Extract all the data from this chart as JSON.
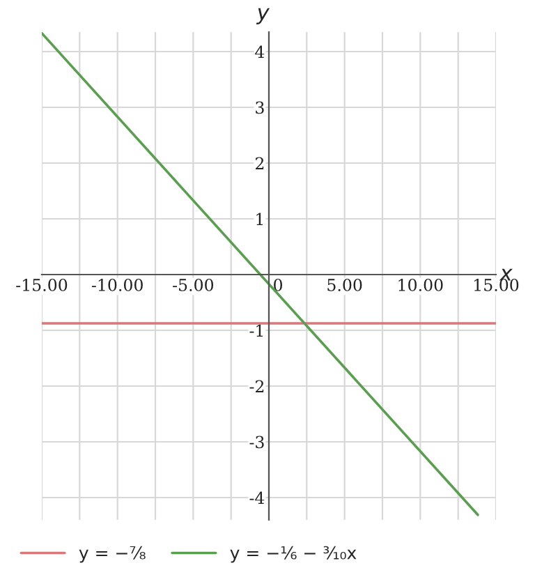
{
  "chart_data": {
    "type": "line",
    "xlabel": "x",
    "ylabel": "y",
    "xlim": [
      -15,
      15
    ],
    "ylim": [
      -4.4,
      4.35
    ],
    "xticks": [
      {
        "value": -15,
        "label": "-15.00"
      },
      {
        "value": -12.5,
        "label": null
      },
      {
        "value": -10,
        "label": "-10.00"
      },
      {
        "value": -7.5,
        "label": null
      },
      {
        "value": -5,
        "label": "-5.00"
      },
      {
        "value": -2.5,
        "label": null
      },
      0,
      {
        "value": 2.5,
        "label": null
      },
      {
        "value": 5,
        "label": "5.00"
      },
      {
        "value": 7.5,
        "label": null
      },
      {
        "value": 10,
        "label": "10.00"
      },
      {
        "value": 12.5,
        "label": null
      },
      {
        "value": 15,
        "label": "15.00"
      }
    ],
    "yticks": [
      {
        "value": -4,
        "label": "-4"
      },
      {
        "value": -3,
        "label": "-3"
      },
      {
        "value": -2,
        "label": "-2"
      },
      {
        "value": -1,
        "label": "-1"
      },
      {
        "value": 0,
        "label": null
      },
      1,
      2,
      3,
      4
    ],
    "grid": true,
    "legend": "bottom",
    "marker": "none",
    "line_style": "solid",
    "series": [
      {
        "name": "y = −⅞",
        "color": "#d9777a",
        "x": [
          -15,
          15
        ],
        "values": [
          -0.875,
          -0.875
        ]
      },
      {
        "name": "y = −⅙ − ³⁄₁₀x",
        "color": "#5a9e4f",
        "x": [
          -15,
          13.8
        ],
        "values": [
          4.33,
          -4.31
        ]
      }
    ]
  }
}
